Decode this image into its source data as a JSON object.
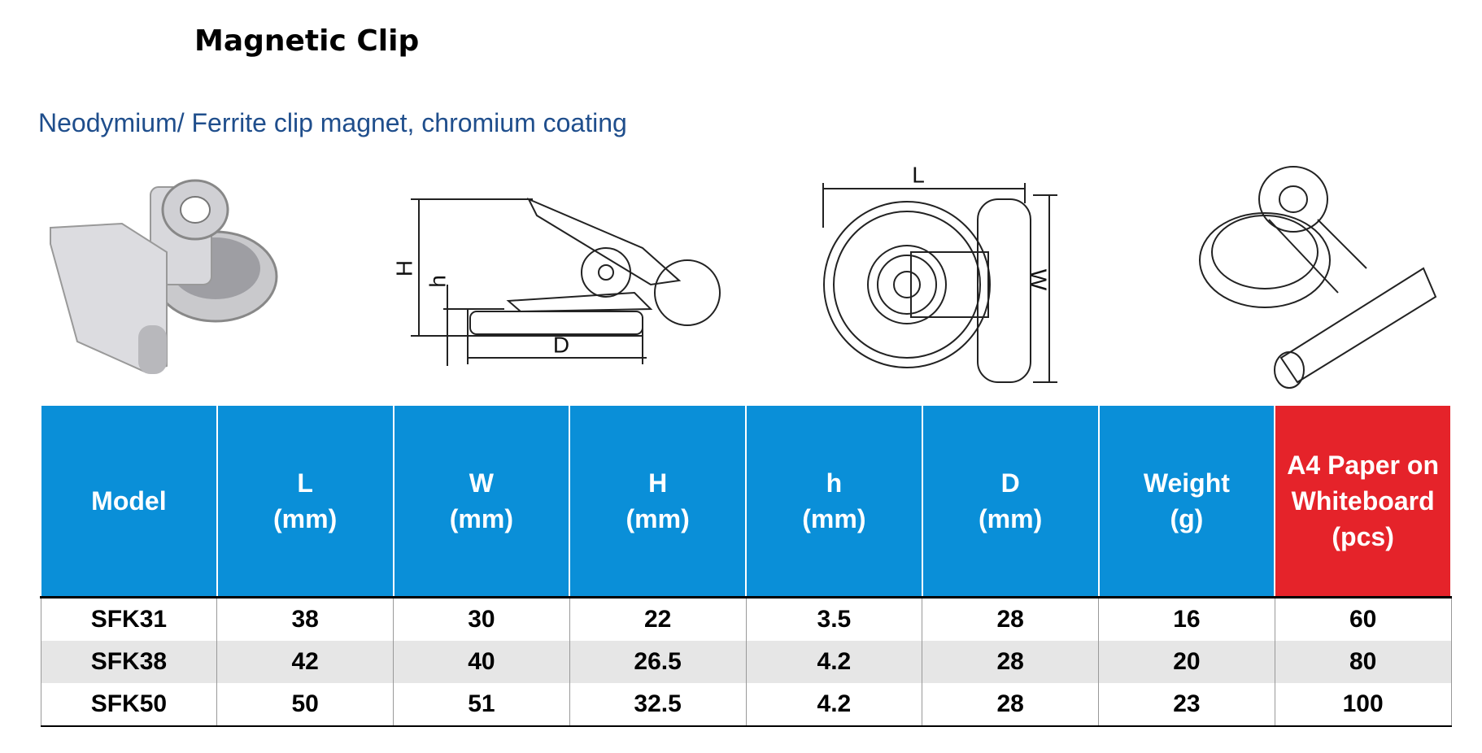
{
  "header": {
    "title": "Magnetic Clip",
    "subtitle": "Neodymium/ Ferrite clip magnet, chromium coating"
  },
  "diagram": {
    "side_labels": [
      "H",
      "h",
      "D"
    ],
    "front_labels": [
      "L",
      "W"
    ]
  },
  "table": {
    "columns": [
      [
        "Model"
      ],
      [
        "L",
        "(mm)"
      ],
      [
        "W",
        "(mm)"
      ],
      [
        "H",
        "(mm)"
      ],
      [
        "h",
        "(mm)"
      ],
      [
        "D",
        "(mm)"
      ],
      [
        "Weight",
        "(g)"
      ],
      [
        "A4 Paper on",
        "Whiteboard",
        "(pcs)"
      ]
    ],
    "rows": [
      [
        "SFK31",
        38,
        30,
        22,
        3.5,
        28,
        16,
        60
      ],
      [
        "SFK38",
        42,
        40,
        26.5,
        4.2,
        28,
        20,
        80
      ],
      [
        "SFK50",
        50,
        51,
        32.5,
        4.2,
        28,
        23,
        100
      ]
    ]
  }
}
